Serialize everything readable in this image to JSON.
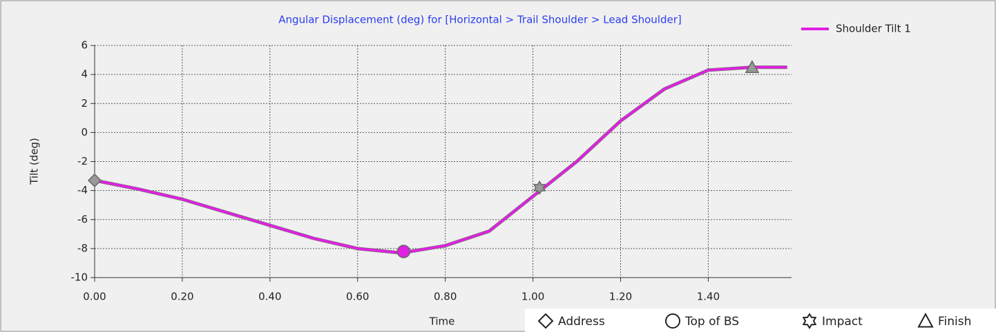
{
  "chart_data": {
    "type": "line",
    "title": "Angular Displacement (deg) for [Horizontal > Trail Shoulder > Lead Shoulder]",
    "x_label": "Time",
    "y_label": "Tilt (deg)",
    "x": [
      0,
      0.1,
      0.2,
      0.3,
      0.4,
      0.5,
      0.6,
      0.7,
      0.8,
      0.9,
      1.0,
      1.1,
      1.2,
      1.3,
      1.4,
      1.5,
      1.58
    ],
    "series": [
      {
        "name": "Shoulder Tilt 1",
        "color": "#e020e0",
        "values": [
          -3.3,
          -3.9,
          -4.6,
          -5.5,
          -6.4,
          -7.3,
          -8.0,
          -8.3,
          -7.8,
          -6.8,
          -4.4,
          -2.0,
          0.8,
          3.0,
          4.3,
          4.5,
          4.5
        ]
      }
    ],
    "markers": [
      {
        "name": "Address",
        "shape": "diamond",
        "x": 0,
        "y": -3.3
      },
      {
        "name": "Top of BS",
        "shape": "circle",
        "x": 0.705,
        "y": -8.2
      },
      {
        "name": "Impact",
        "shape": "star",
        "x": 1.015,
        "y": -3.8
      },
      {
        "name": "Finish",
        "shape": "triangle",
        "x": 1.5,
        "y": 4.5
      }
    ],
    "xlim": [
      0,
      1.59
    ],
    "ylim": [
      -10,
      6
    ],
    "xticks": [
      {
        "value": 0,
        "label": "0.00"
      },
      {
        "value": 0.2,
        "label": "0.20"
      },
      {
        "value": 0.4,
        "label": "0.40"
      },
      {
        "value": 0.6,
        "label": "0.60"
      },
      {
        "value": 0.8,
        "label": "0.80"
      },
      {
        "value": 1.0,
        "label": "1.00"
      },
      {
        "value": 1.2,
        "label": "1.20"
      },
      {
        "value": 1.4,
        "label": "1.40"
      }
    ],
    "yticks": [
      -10,
      -8,
      -6,
      -4,
      -2,
      0,
      2,
      4,
      6
    ],
    "grid": true,
    "legend": "top-right"
  }
}
